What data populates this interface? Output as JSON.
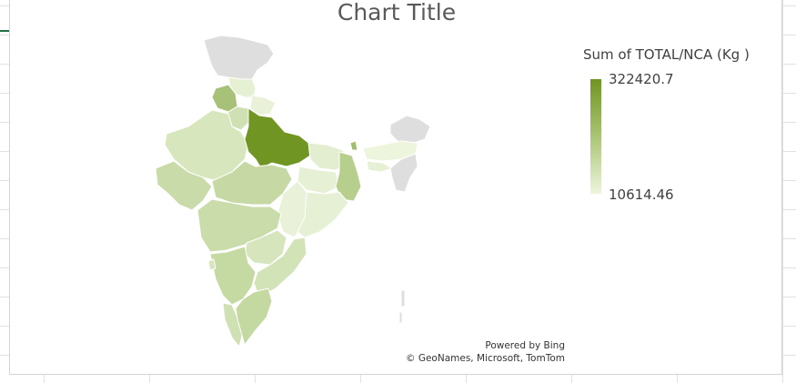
{
  "chart_data": {
    "type": "filled-map",
    "title": "Chart Title",
    "legend": {
      "title": "Sum of TOTAL/NCA (Kg )",
      "max": "322420.7",
      "min": "10614.46",
      "placement": "right",
      "color_max": "#709522",
      "color_min": "#eef5dd",
      "no_data_color": "#dedede"
    },
    "attribution": {
      "line1": "Powered by Bing",
      "line2": "© GeoNames, Microsoft, TomTom"
    }
  }
}
